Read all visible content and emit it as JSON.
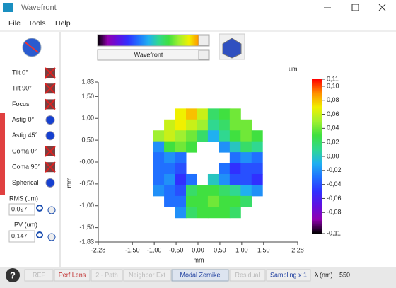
{
  "window": {
    "title": "Wavefront"
  },
  "menu": [
    "File",
    "Tools",
    "Help"
  ],
  "toolbar": {
    "display": "Wavefront"
  },
  "sidebar": {
    "terms": [
      "Tilt 0°",
      "Tilt 90°",
      "Focus",
      "Astig 0°",
      "Astig 45°",
      "Coma 0°",
      "Coma 90°",
      "Spherical"
    ],
    "rms_label": "RMS (um)",
    "rms": "0,027",
    "pv_label": "PV (um)",
    "pv": "0,147"
  },
  "statusbar": {
    "help": "?",
    "buttons": [
      "REF",
      "Perf Lens",
      "2 - Path",
      "Neighbor Ext",
      "Modal Zernike",
      "Residual",
      "Sampling x 1"
    ],
    "lambda_label": "λ (nm)",
    "lambda": "550"
  },
  "chart_data": {
    "type": "heatmap",
    "unit": "um",
    "xlabel": "mm",
    "ylabel": "mm",
    "x": [
      -0.9,
      -0.65,
      -0.4,
      -0.15,
      0.1,
      0.35,
      0.6,
      0.85,
      1.1,
      1.35
    ],
    "y": [
      1.1,
      0.85,
      0.6,
      0.35,
      0.1,
      -0.15,
      -0.4,
      -0.65,
      -0.9,
      -1.15
    ],
    "z": [
      [
        null,
        null,
        0.07,
        0.08,
        0.06,
        0.02,
        0.03,
        0.04,
        null,
        null
      ],
      [
        null,
        0.06,
        0.07,
        0.06,
        0.05,
        0.01,
        0.02,
        0.04,
        0.04,
        null
      ],
      [
        0.05,
        0.06,
        0.05,
        0.04,
        0.02,
        -0.01,
        0.01,
        0.03,
        0.04,
        0.03
      ],
      [
        -0.02,
        0.03,
        0.04,
        0.03,
        null,
        null,
        -0.02,
        0.0,
        0.02,
        0.01
      ],
      [
        -0.03,
        -0.02,
        -0.03,
        null,
        null,
        null,
        null,
        -0.03,
        -0.02,
        -0.03
      ],
      [
        -0.03,
        -0.03,
        -0.04,
        null,
        null,
        null,
        -0.03,
        -0.05,
        -0.04,
        -0.04
      ],
      [
        -0.03,
        -0.02,
        -0.05,
        -0.03,
        null,
        0.0,
        -0.02,
        -0.04,
        -0.04,
        -0.05
      ],
      [
        -0.02,
        -0.03,
        -0.04,
        0.02,
        0.03,
        0.03,
        0.02,
        0.01,
        -0.01,
        -0.02
      ],
      [
        null,
        -0.03,
        -0.03,
        0.03,
        0.03,
        0.04,
        0.03,
        0.03,
        0.02,
        null
      ],
      [
        null,
        null,
        -0.02,
        0.02,
        0.03,
        0.03,
        0.03,
        0.02,
        null,
        null
      ]
    ],
    "xlim": [
      -2.28,
      2.28
    ],
    "ylim": [
      -1.83,
      1.83
    ],
    "xticks": [
      {
        "value": -2.28,
        "label": "-2,28"
      },
      {
        "value": -1.5,
        "label": "-1,50"
      },
      {
        "value": -1,
        "label": "-1,00"
      },
      {
        "value": -0.5,
        "label": "-0,50"
      },
      {
        "value": 0,
        "label": "0,00"
      },
      {
        "value": 0.5,
        "label": "0,50"
      },
      {
        "value": 1,
        "label": "1,00"
      },
      {
        "value": 1.5,
        "label": "1,50"
      },
      {
        "value": 2.28,
        "label": "2,28"
      }
    ],
    "yticks": [
      {
        "value": 1.83,
        "label": "1,83"
      },
      {
        "value": 1.5,
        "label": "1,50"
      },
      {
        "value": 1,
        "label": "1,00"
      },
      {
        "value": 0.5,
        "label": "0,50"
      },
      {
        "value": 0,
        "label": "-0,00"
      },
      {
        "value": -0.5,
        "label": "-0,50"
      },
      {
        "value": -1,
        "label": "-1,00"
      },
      {
        "value": -1.5,
        "label": "-1,50"
      },
      {
        "value": -1.83,
        "label": "-1,83"
      }
    ],
    "colorbar": {
      "lim": [
        -0.11,
        0.11
      ],
      "ticks": [
        {
          "value": 0.11,
          "label": "0,11"
        },
        {
          "value": 0.1,
          "label": "0,10"
        },
        {
          "value": 0.08,
          "label": "0,08"
        },
        {
          "value": 0.06,
          "label": "0,06"
        },
        {
          "value": 0.04,
          "label": "0,04"
        },
        {
          "value": 0.02,
          "label": "0,02"
        },
        {
          "value": 0,
          "label": "0,00"
        },
        {
          "value": -0.02,
          "label": "-0,02"
        },
        {
          "value": -0.04,
          "label": "-0,04"
        },
        {
          "value": -0.06,
          "label": "-0,06"
        },
        {
          "value": -0.08,
          "label": "-0,08"
        },
        {
          "value": -0.11,
          "label": "-0,11"
        }
      ]
    },
    "colormap": [
      "#000000",
      "#9000b0",
      "#6010e0",
      "#3030ff",
      "#2070ff",
      "#20b0f0",
      "#30d890",
      "#40e040",
      "#a0f030",
      "#f0f000",
      "#ff9000",
      "#ff0000"
    ]
  }
}
